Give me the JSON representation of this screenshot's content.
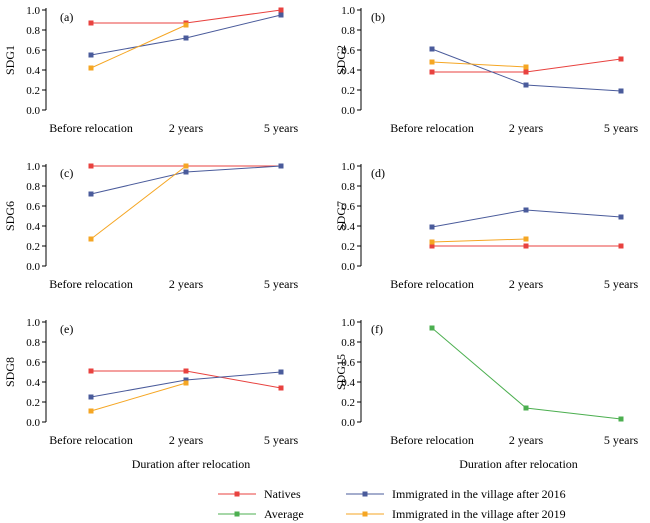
{
  "chart_data": [
    {
      "type": "line",
      "panel": "(a)",
      "ylabel": "SDG1",
      "xlabel": "",
      "categories": [
        "Before relocation",
        "2 years",
        "5 years"
      ],
      "ylim": [
        0,
        1.0
      ],
      "yticks": [
        "0.0",
        "0.2",
        "0.4",
        "0.6",
        "0.8",
        "1.0"
      ],
      "series": [
        {
          "name": "Natives",
          "color": "#e8423f",
          "values": [
            0.87,
            0.87,
            1.0
          ]
        },
        {
          "name": "Immigrated in the village after 2016",
          "color": "#4a5b9b",
          "values": [
            0.55,
            0.72,
            0.95
          ]
        },
        {
          "name": "Immigrated in the village after 2019",
          "color": "#f5a623",
          "values": [
            0.42,
            0.85,
            null
          ]
        }
      ]
    },
    {
      "type": "line",
      "panel": "(b)",
      "ylabel": "SDG2",
      "xlabel": "",
      "categories": [
        "Before relocation",
        "2 years",
        "5 years"
      ],
      "ylim": [
        0,
        1.0
      ],
      "yticks": [
        "0.0",
        "0.2",
        "0.4",
        "0.6",
        "0.8",
        "1.0"
      ],
      "series": [
        {
          "name": "Natives",
          "color": "#e8423f",
          "values": [
            0.38,
            0.38,
            0.51
          ]
        },
        {
          "name": "Immigrated in the village after 2016",
          "color": "#4a5b9b",
          "values": [
            0.61,
            0.25,
            0.19
          ]
        },
        {
          "name": "Immigrated in the village after 2019",
          "color": "#f5a623",
          "values": [
            0.48,
            0.43,
            null
          ]
        }
      ]
    },
    {
      "type": "line",
      "panel": "(c)",
      "ylabel": "SDG6",
      "xlabel": "",
      "categories": [
        "Before relocation",
        "2 years",
        "5 years"
      ],
      "ylim": [
        0,
        1.0
      ],
      "yticks": [
        "0.0",
        "0.2",
        "0.4",
        "0.6",
        "0.8",
        "1.0"
      ],
      "series": [
        {
          "name": "Natives",
          "color": "#e8423f",
          "values": [
            1.0,
            1.0,
            1.0
          ]
        },
        {
          "name": "Immigrated in the village after 2016",
          "color": "#4a5b9b",
          "values": [
            0.72,
            0.94,
            1.0
          ]
        },
        {
          "name": "Immigrated in the village after 2019",
          "color": "#f5a623",
          "values": [
            0.27,
            1.0,
            null
          ]
        }
      ]
    },
    {
      "type": "line",
      "panel": "(d)",
      "ylabel": "SDG7",
      "xlabel": "",
      "categories": [
        "Before relocation",
        "2 years",
        "5 years"
      ],
      "ylim": [
        0,
        1.0
      ],
      "yticks": [
        "0.0",
        "0.2",
        "0.4",
        "0.6",
        "0.8",
        "1.0"
      ],
      "series": [
        {
          "name": "Natives",
          "color": "#e8423f",
          "values": [
            0.2,
            0.2,
            0.2
          ]
        },
        {
          "name": "Immigrated in the village after 2016",
          "color": "#4a5b9b",
          "values": [
            0.39,
            0.56,
            0.49
          ]
        },
        {
          "name": "Immigrated in the village after 2019",
          "color": "#f5a623",
          "values": [
            0.24,
            0.27,
            null
          ]
        }
      ]
    },
    {
      "type": "line",
      "panel": "(e)",
      "ylabel": "SDG8",
      "xlabel": "Duration after relocation",
      "categories": [
        "Before relocation",
        "2 years",
        "5 years"
      ],
      "ylim": [
        0,
        1.0
      ],
      "yticks": [
        "0.0",
        "0.2",
        "0.4",
        "0.6",
        "0.8",
        "1.0"
      ],
      "series": [
        {
          "name": "Natives",
          "color": "#e8423f",
          "values": [
            0.51,
            0.51,
            0.34
          ]
        },
        {
          "name": "Immigrated in the village after 2016",
          "color": "#4a5b9b",
          "values": [
            0.25,
            0.42,
            0.5
          ]
        },
        {
          "name": "Immigrated in the village after 2019",
          "color": "#f5a623",
          "values": [
            0.11,
            0.39,
            null
          ]
        }
      ]
    },
    {
      "type": "line",
      "panel": "(f)",
      "ylabel": "SDG15",
      "xlabel": "Duration after relocation",
      "categories": [
        "Before relocation",
        "2 years",
        "5 years"
      ],
      "ylim": [
        0,
        1.0
      ],
      "yticks": [
        "0.0",
        "0.2",
        "0.4",
        "0.6",
        "0.8",
        "1.0"
      ],
      "series": [
        {
          "name": "Average",
          "color": "#4caf50",
          "values": [
            0.94,
            0.14,
            0.03
          ]
        }
      ]
    }
  ],
  "legend": {
    "placement": "bottom",
    "items": [
      {
        "name": "Natives",
        "color": "#e8423f"
      },
      {
        "name": "Immigrated in the village after 2016",
        "color": "#4a5b9b"
      },
      {
        "name": "Average",
        "color": "#4caf50"
      },
      {
        "name": "Immigrated in the village after 2019",
        "color": "#f5a623"
      }
    ]
  }
}
